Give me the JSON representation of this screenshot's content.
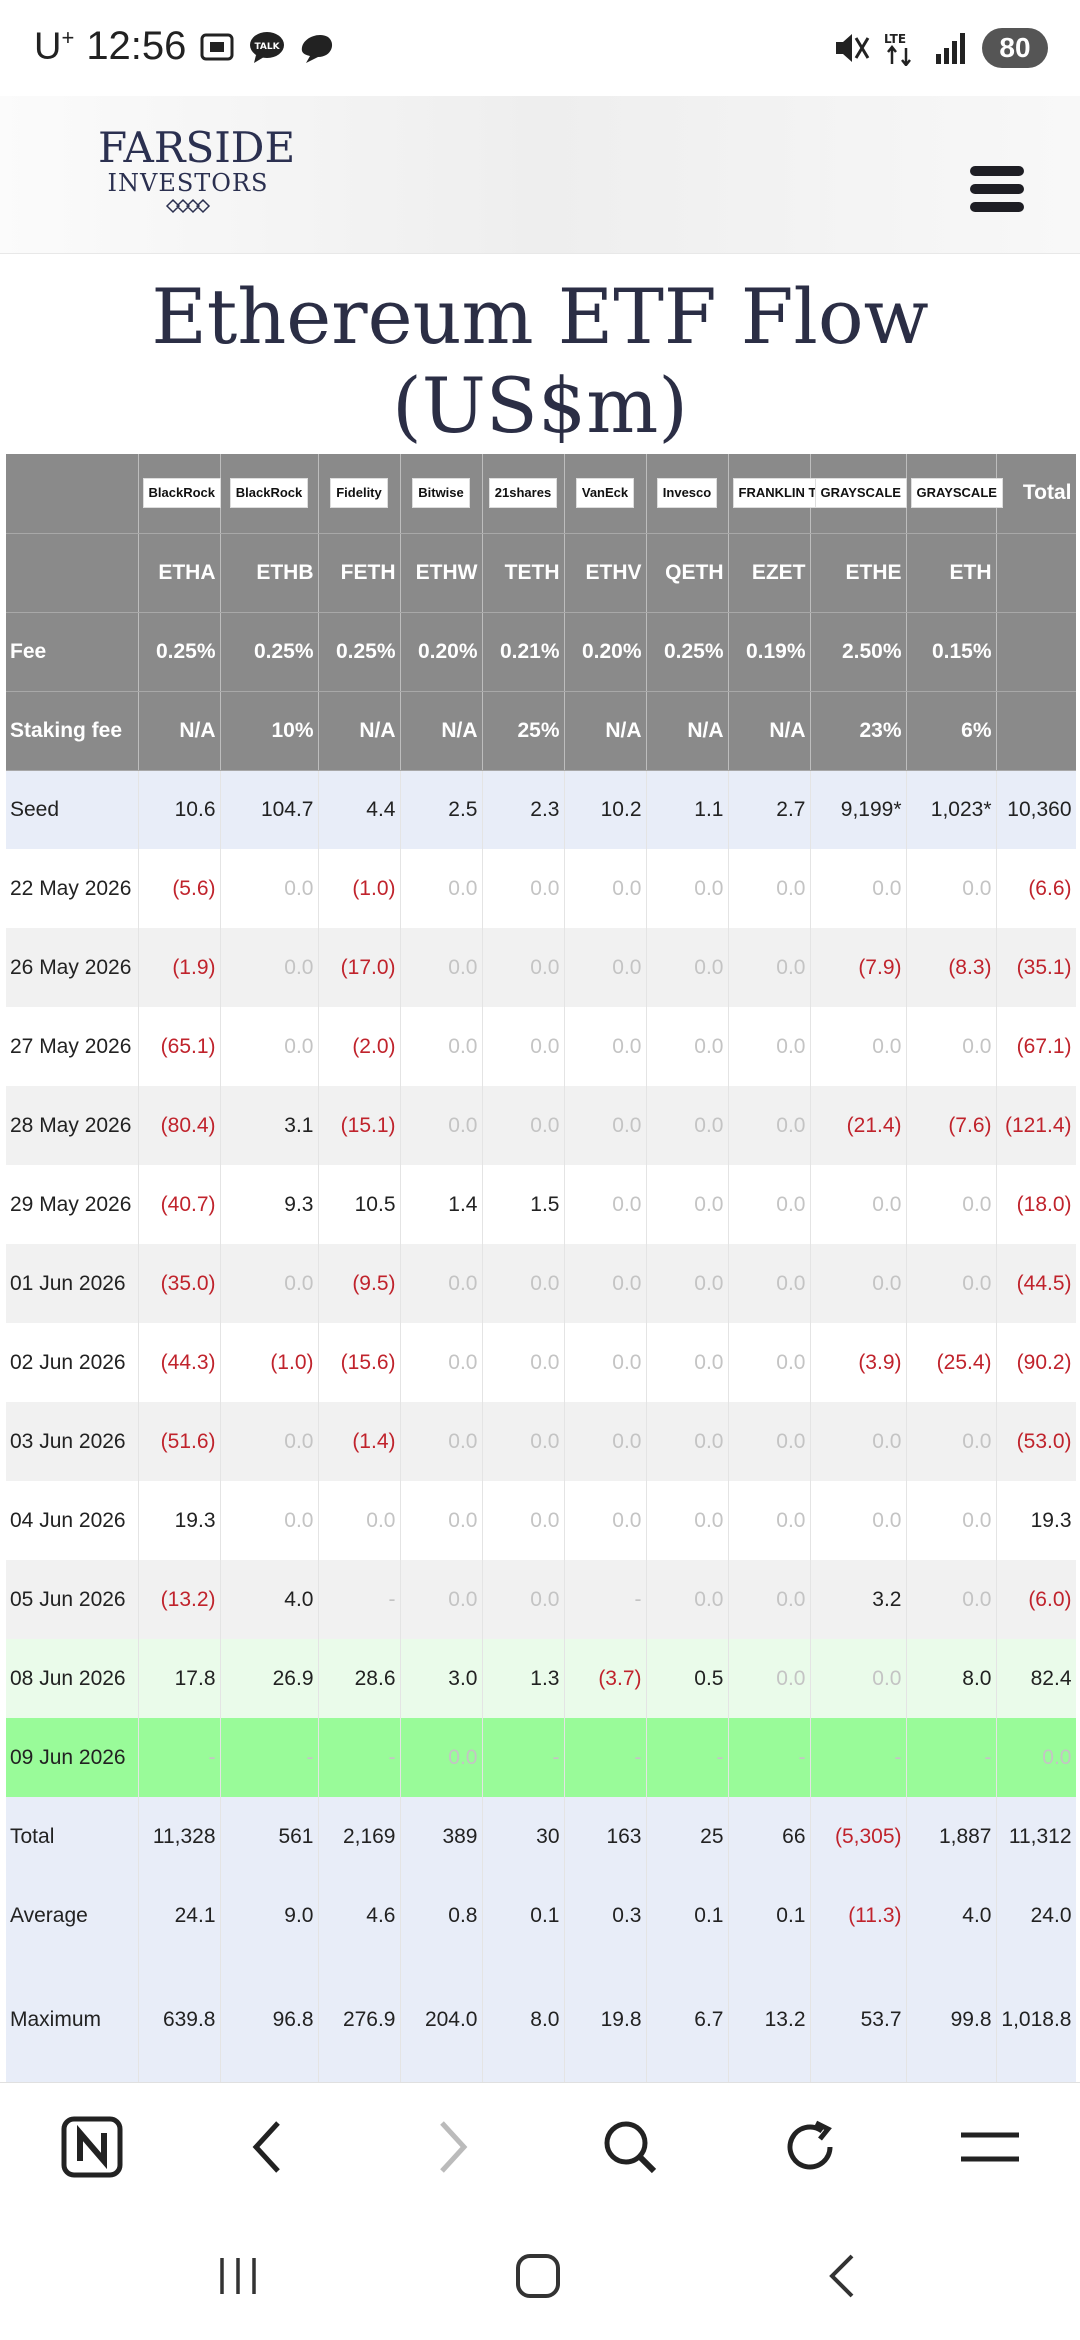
{
  "status_bar": {
    "carrier": "U",
    "carrier_sup": "+",
    "time": "12:56",
    "battery": "80",
    "lte": "LTE"
  },
  "site": {
    "logo_name": "FARSIDE",
    "logo_sub": "INVESTORS"
  },
  "page_title": "Ethereum ETF Flow (US$m)",
  "table": {
    "issuers": [
      "BlackRock",
      "BlackRock",
      "Fidelity",
      "Bitwise",
      "21shares",
      "VanEck",
      "Invesco",
      "FRANKLIN TEMPLETON",
      "GRAYSCALE",
      "GRAYSCALE",
      "Total"
    ],
    "tickers": [
      "",
      "ETHA",
      "ETHB",
      "FETH",
      "ETHW",
      "TETH",
      "ETHV",
      "QETH",
      "EZET",
      "ETHE",
      "ETH",
      ""
    ],
    "fee_label": "Fee",
    "fees": [
      "0.25%",
      "0.25%",
      "0.25%",
      "0.20%",
      "0.21%",
      "0.20%",
      "0.25%",
      "0.19%",
      "2.50%",
      "0.15%",
      ""
    ],
    "staking_label": "Staking fee",
    "staking": [
      "N/A",
      "10%",
      "N/A",
      "N/A",
      "25%",
      "N/A",
      "N/A",
      "N/A",
      "23%",
      "6%",
      ""
    ],
    "rows": [
      {
        "label": "Seed",
        "cls": "seed",
        "cells": [
          "10.6",
          "104.7",
          "4.4",
          "2.5",
          "2.3",
          "10.2",
          "1.1",
          "2.7",
          "9,199*",
          "1,023*",
          "10,360"
        ]
      },
      {
        "label": "22 May 2026",
        "cls": "odd",
        "cells": [
          "(5.6)",
          "0.0",
          "(1.0)",
          "0.0",
          "0.0",
          "0.0",
          "0.0",
          "0.0",
          "0.0",
          "0.0",
          "(6.6)"
        ]
      },
      {
        "label": "26 May 2026",
        "cls": "even",
        "cells": [
          "(1.9)",
          "0.0",
          "(17.0)",
          "0.0",
          "0.0",
          "0.0",
          "0.0",
          "0.0",
          "(7.9)",
          "(8.3)",
          "(35.1)"
        ]
      },
      {
        "label": "27 May 2026",
        "cls": "odd",
        "cells": [
          "(65.1)",
          "0.0",
          "(2.0)",
          "0.0",
          "0.0",
          "0.0",
          "0.0",
          "0.0",
          "0.0",
          "0.0",
          "(67.1)"
        ]
      },
      {
        "label": "28 May 2026",
        "cls": "even",
        "cells": [
          "(80.4)",
          "3.1",
          "(15.1)",
          "0.0",
          "0.0",
          "0.0",
          "0.0",
          "0.0",
          "(21.4)",
          "(7.6)",
          "(121.4)"
        ]
      },
      {
        "label": "29 May 2026",
        "cls": "odd",
        "cells": [
          "(40.7)",
          "9.3",
          "10.5",
          "1.4",
          "1.5",
          "0.0",
          "0.0",
          "0.0",
          "0.0",
          "0.0",
          "(18.0)"
        ]
      },
      {
        "label": "01 Jun 2026",
        "cls": "even",
        "cells": [
          "(35.0)",
          "0.0",
          "(9.5)",
          "0.0",
          "0.0",
          "0.0",
          "0.0",
          "0.0",
          "0.0",
          "0.0",
          "(44.5)"
        ]
      },
      {
        "label": "02 Jun 2026",
        "cls": "odd",
        "cells": [
          "(44.3)",
          "(1.0)",
          "(15.6)",
          "0.0",
          "0.0",
          "0.0",
          "0.0",
          "0.0",
          "(3.9)",
          "(25.4)",
          "(90.2)"
        ]
      },
      {
        "label": "03 Jun 2026",
        "cls": "even",
        "cells": [
          "(51.6)",
          "0.0",
          "(1.4)",
          "0.0",
          "0.0",
          "0.0",
          "0.0",
          "0.0",
          "0.0",
          "0.0",
          "(53.0)"
        ]
      },
      {
        "label": "04 Jun 2026",
        "cls": "odd",
        "cells": [
          "19.3",
          "0.0",
          "0.0",
          "0.0",
          "0.0",
          "0.0",
          "0.0",
          "0.0",
          "0.0",
          "0.0",
          "19.3"
        ]
      },
      {
        "label": "05 Jun 2026",
        "cls": "even",
        "cells": [
          "(13.2)",
          "4.0",
          "-",
          "0.0",
          "0.0",
          "-",
          "0.0",
          "0.0",
          "3.2",
          "0.0",
          "(6.0)"
        ]
      },
      {
        "label": "08 Jun 2026",
        "cls": "hi1",
        "cells": [
          "17.8",
          "26.9",
          "28.6",
          "3.0",
          "1.3",
          "(3.7)",
          "0.5",
          "0.0",
          "0.0",
          "8.0",
          "82.4"
        ]
      },
      {
        "label": "09 Jun 2026",
        "cls": "hi2",
        "cells": [
          "-",
          "-",
          "-",
          "0.0",
          "-",
          "-",
          "-",
          "-",
          "-",
          "-",
          "0.0"
        ]
      },
      {
        "label": "Total",
        "cls": "summary",
        "cells": [
          "11,328",
          "561",
          "2,169",
          "389",
          "30",
          "163",
          "25",
          "66",
          "(5,305)",
          "1,887",
          "11,312"
        ]
      },
      {
        "label": "Average",
        "cls": "summary",
        "cells": [
          "24.1",
          "9.0",
          "4.6",
          "0.8",
          "0.1",
          "0.3",
          "0.1",
          "0.1",
          "(11.3)",
          "4.0",
          "24.0"
        ]
      },
      {
        "label": "Maximum",
        "cls": "summary tall",
        "cells": [
          "639.8",
          "96.8",
          "276.9",
          "204.0",
          "8.0",
          "19.8",
          "6.7",
          "13.2",
          "53.7",
          "99.8",
          "1,018.8"
        ]
      }
    ]
  }
}
